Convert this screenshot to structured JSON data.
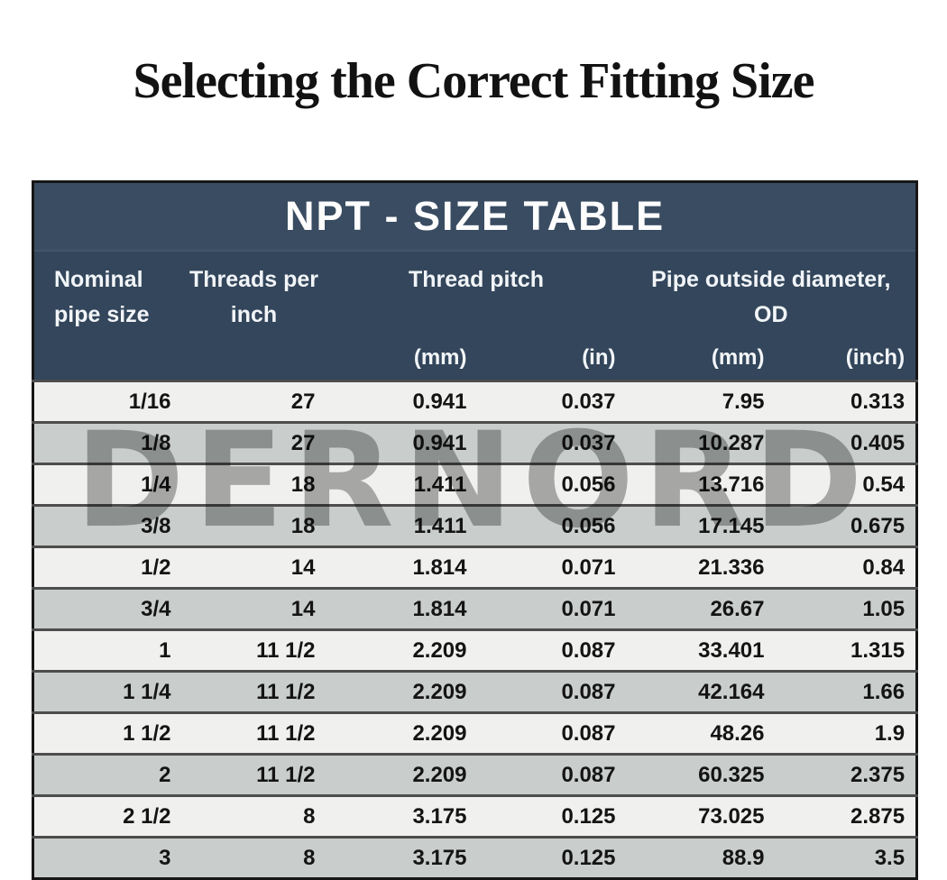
{
  "title": "Selecting the Correct Fitting Size",
  "watermark": "DERNORD",
  "colors": {
    "banner_navy": "#394c61",
    "header_navy": "#33465b",
    "header_text": "#f2f5f8",
    "row_light": "#f0f0ee",
    "row_dark": "#c9cdcc",
    "row_border": "#4d4d4d",
    "outer_border": "#161616",
    "cell_text": "#141414",
    "watermark_gray": "#b1b2b1",
    "title_text": "#121212"
  },
  "chart_data": {
    "type": "table",
    "title": "NPT - SIZE TABLE",
    "column_groups": [
      {
        "label_lines": [
          "Nominal",
          "pipe size"
        ],
        "span": 1
      },
      {
        "label_lines": [
          "Threads per",
          "inch"
        ],
        "span": 1
      },
      {
        "label_lines": [
          "Thread pitch"
        ],
        "span": 2
      },
      {
        "label_lines": [
          "Pipe outside diameter,",
          "OD"
        ],
        "span": 2
      }
    ],
    "unit_labels": [
      "(mm)",
      "(in)",
      "(mm)",
      "(inch)"
    ],
    "columns_flat": [
      "Nominal pipe size",
      "Threads per inch",
      "Thread pitch (mm)",
      "Thread pitch (in)",
      "Pipe outside diameter OD (mm)",
      "Pipe outside diameter OD (inch)"
    ],
    "rows": [
      [
        "1/16",
        "27",
        "0.941",
        "0.037",
        "7.95",
        "0.313"
      ],
      [
        "1/8",
        "27",
        "0.941",
        "0.037",
        "10.287",
        "0.405"
      ],
      [
        "1/4",
        "18",
        "1.411",
        "0.056",
        "13.716",
        "0.54"
      ],
      [
        "3/8",
        "18",
        "1.411",
        "0.056",
        "17.145",
        "0.675"
      ],
      [
        "1/2",
        "14",
        "1.814",
        "0.071",
        "21.336",
        "0.84"
      ],
      [
        "3/4",
        "14",
        "1.814",
        "0.071",
        "26.67",
        "1.05"
      ],
      [
        "1",
        "11 1/2",
        "2.209",
        "0.087",
        "33.401",
        "1.315"
      ],
      [
        "1 1/4",
        "11 1/2",
        "2.209",
        "0.087",
        "42.164",
        "1.66"
      ],
      [
        "1 1/2",
        "11 1/2",
        "2.209",
        "0.087",
        "48.26",
        "1.9"
      ],
      [
        "2",
        "11 1/2",
        "2.209",
        "0.087",
        "60.325",
        "2.375"
      ],
      [
        "2 1/2",
        "8",
        "3.175",
        "0.125",
        "73.025",
        "2.875"
      ],
      [
        "3",
        "8",
        "3.175",
        "0.125",
        "88.9",
        "3.5"
      ]
    ],
    "layout": {
      "row_striping": "alternating light/dark starting light",
      "cell_alignment": "right",
      "gridlines": "horizontal only"
    }
  }
}
